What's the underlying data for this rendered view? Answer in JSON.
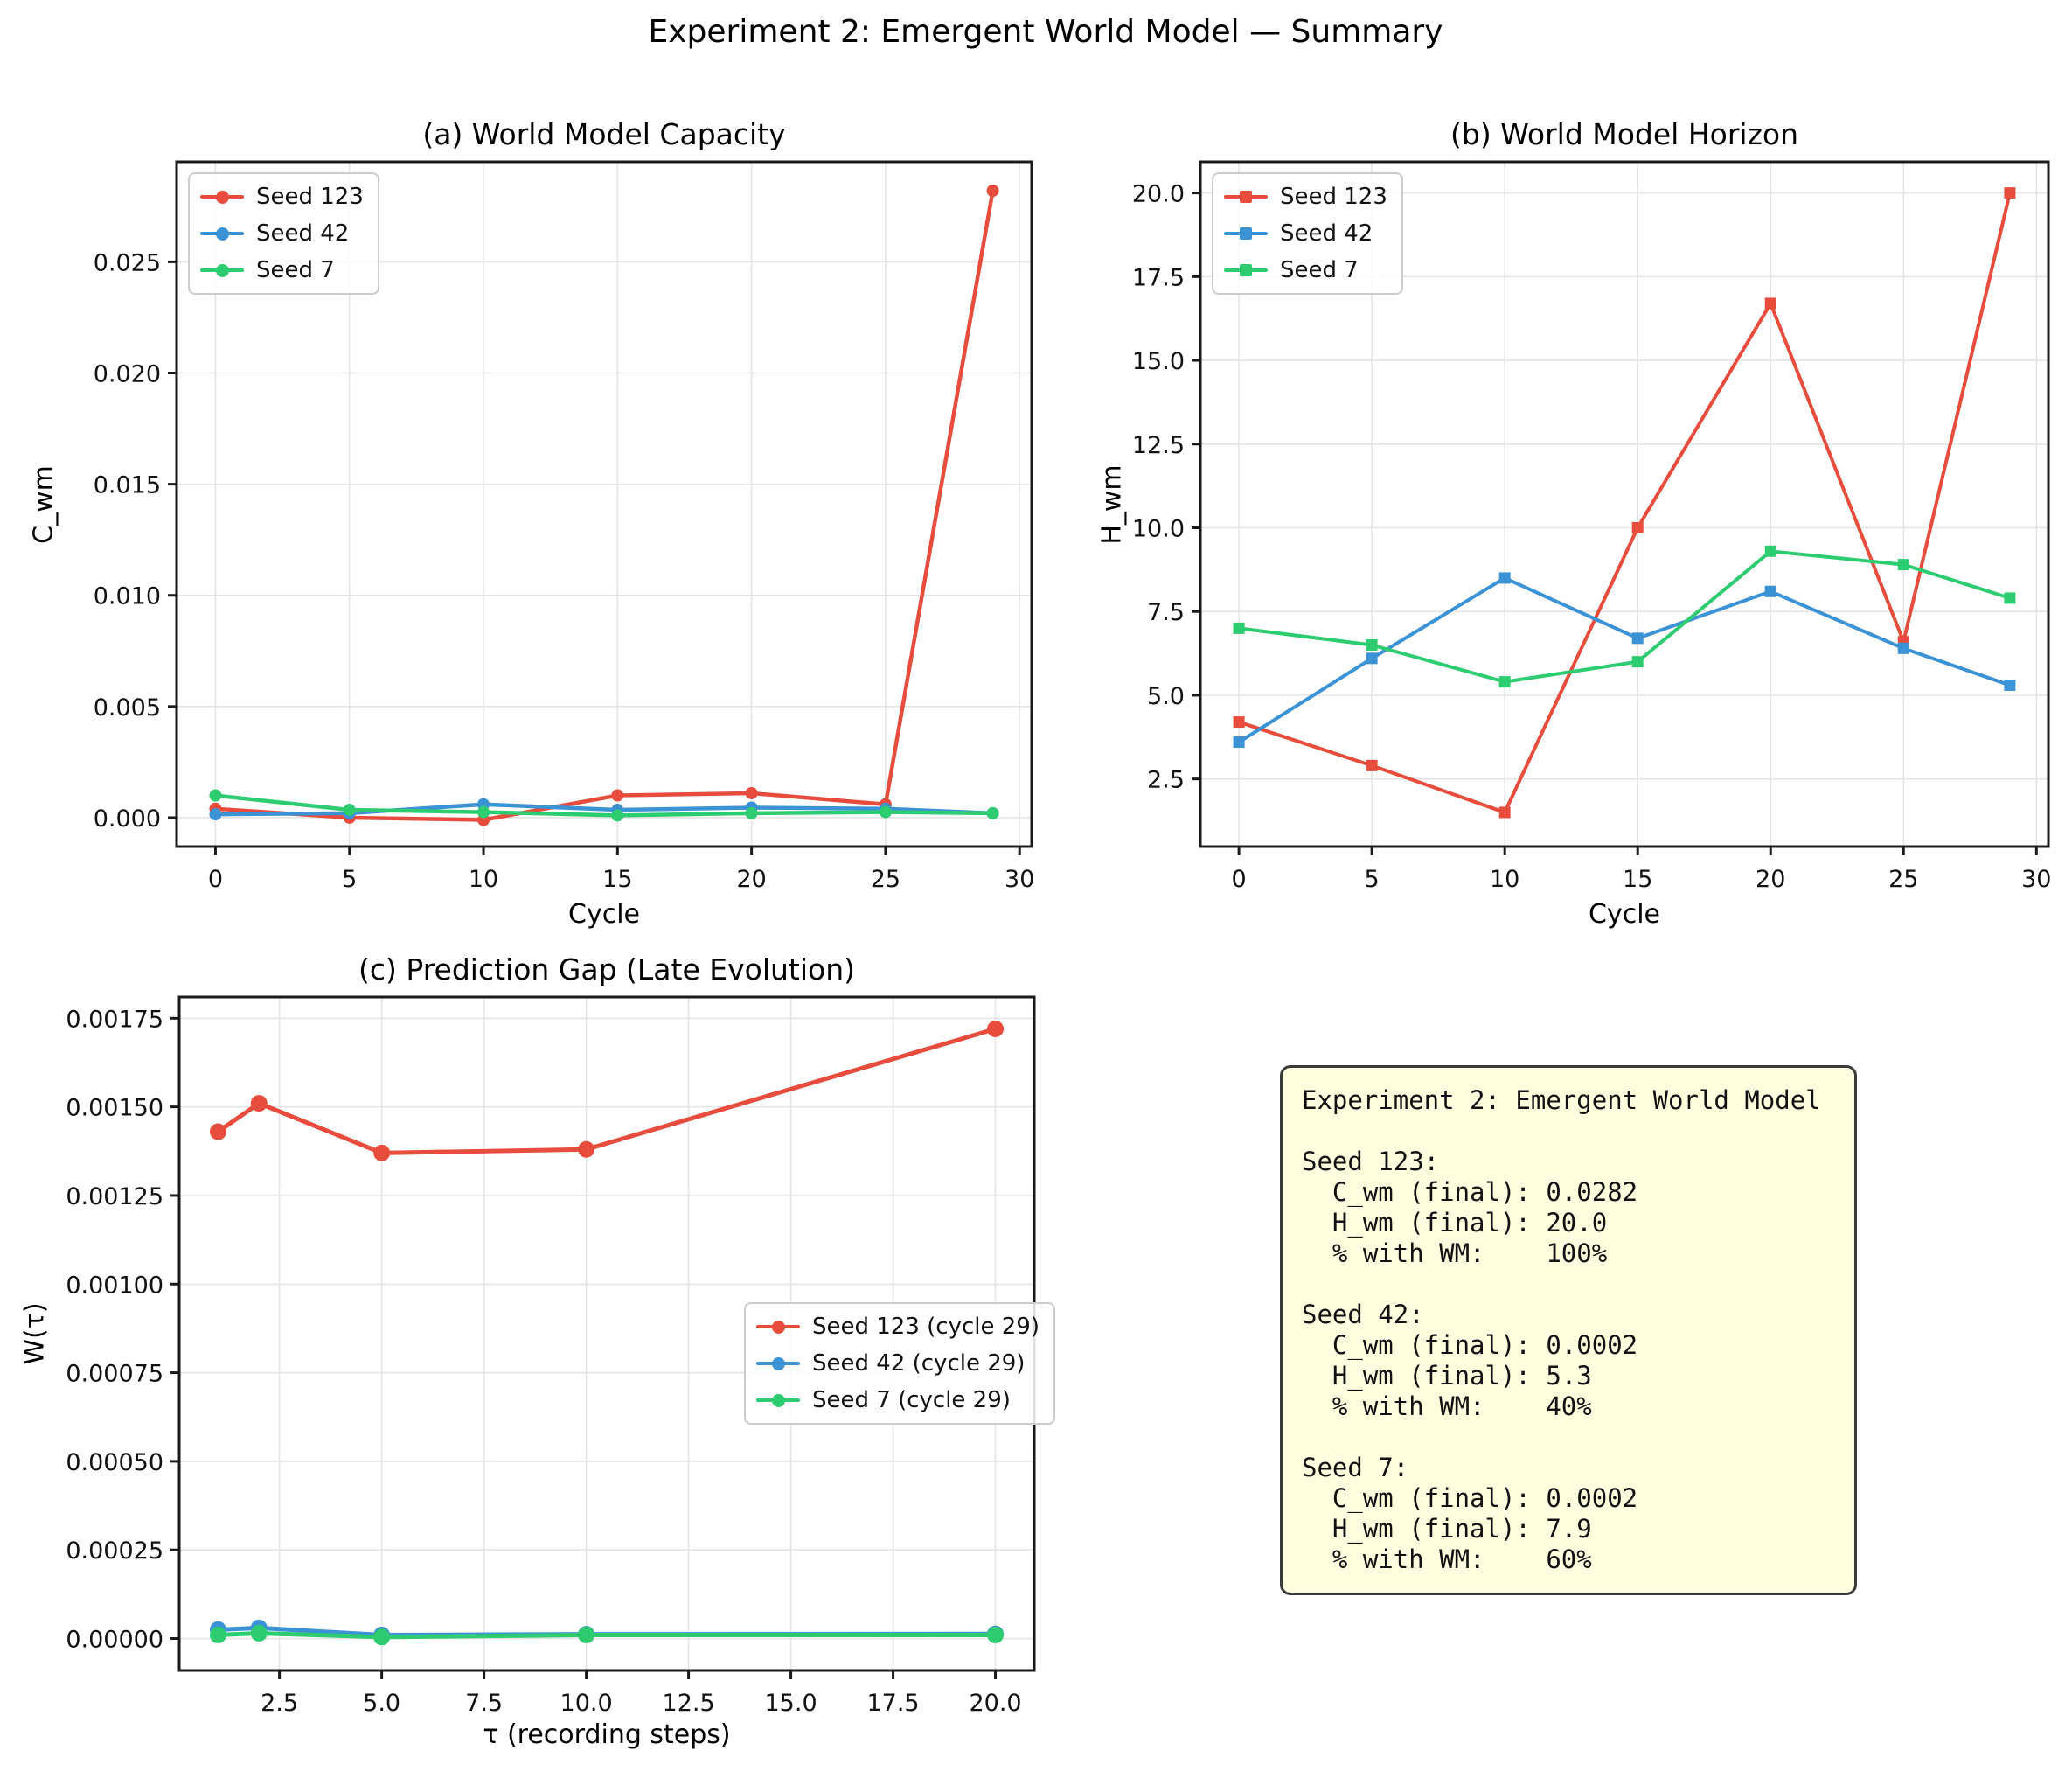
{
  "figure": {
    "title": "Experiment 2: Emergent World Model — Summary",
    "background": "#ffffff"
  },
  "chart_data": [
    {
      "type": "line",
      "title": "(a) World Model Capacity",
      "xlabel": "Cycle",
      "ylabel": "C_wm",
      "x": [
        0,
        5,
        10,
        15,
        20,
        25,
        29
      ],
      "series": [
        {
          "name": "Seed 123",
          "color": "#e74c3c",
          "marker": "circle",
          "values": [
            0.0004,
            0.0,
            -0.0001,
            0.001,
            0.0011,
            0.0006,
            0.0282
          ]
        },
        {
          "name": "Seed 42",
          "color": "#3b92d4",
          "marker": "circle",
          "values": [
            0.00015,
            0.0002,
            0.0006,
            0.00035,
            0.00045,
            0.0004,
            0.0002
          ]
        },
        {
          "name": "Seed 7",
          "color": "#2ecc71",
          "marker": "circle",
          "values": [
            0.001,
            0.00035,
            0.00025,
            0.0001,
            0.0002,
            0.00025,
            0.0002
          ]
        }
      ],
      "xlim": [
        -1.45,
        30.45
      ],
      "ylim": [
        -0.0013,
        0.0295
      ],
      "xticks": [
        0,
        5,
        10,
        15,
        20,
        25,
        30
      ],
      "xtick_labels": [
        "0",
        "5",
        "10",
        "15",
        "20",
        "25",
        "30"
      ],
      "yticks": [
        0,
        0.005,
        0.01,
        0.015,
        0.02,
        0.025
      ],
      "ytick_labels": [
        "0.000",
        "0.005",
        "0.010",
        "0.015",
        "0.020",
        "0.025"
      ],
      "grid": true,
      "legend_loc": "upper left",
      "line_width": 4.5,
      "marker_size": 7
    },
    {
      "type": "line",
      "title": "(b) World Model Horizon",
      "xlabel": "Cycle",
      "ylabel": "H_wm",
      "x": [
        0,
        5,
        10,
        15,
        20,
        25,
        29
      ],
      "series": [
        {
          "name": "Seed 123",
          "color": "#e74c3c",
          "marker": "square",
          "values": [
            4.2,
            2.9,
            1.5,
            10.0,
            16.7,
            6.6,
            20.0
          ]
        },
        {
          "name": "Seed 42",
          "color": "#3b92d4",
          "marker": "square",
          "values": [
            3.6,
            6.1,
            8.5,
            6.7,
            8.1,
            6.4,
            5.3
          ]
        },
        {
          "name": "Seed 7",
          "color": "#2ecc71",
          "marker": "square",
          "values": [
            7.0,
            6.5,
            5.4,
            6.0,
            9.3,
            8.9,
            7.9
          ]
        }
      ],
      "xlim": [
        -1.45,
        30.45
      ],
      "ylim": [
        0.48,
        20.93
      ],
      "xticks": [
        0,
        5,
        10,
        15,
        20,
        25,
        30
      ],
      "xtick_labels": [
        "0",
        "5",
        "10",
        "15",
        "20",
        "25",
        "30"
      ],
      "yticks": [
        2.5,
        5,
        7.5,
        10,
        12.5,
        15,
        17.5,
        20
      ],
      "ytick_labels": [
        "2.5",
        "5.0",
        "7.5",
        "10.0",
        "12.5",
        "15.0",
        "17.5",
        "20.0"
      ],
      "grid": true,
      "legend_loc": "upper left",
      "line_width": 4,
      "marker_size": 6.5
    },
    {
      "type": "line",
      "title": "(c) Prediction Gap (Late Evolution)",
      "xlabel": "τ (recording steps)",
      "ylabel": "W(τ)",
      "x": [
        1,
        2,
        5,
        10,
        20
      ],
      "series": [
        {
          "name": "Seed 123 (cycle 29)",
          "color": "#e74c3c",
          "marker": "circle",
          "values": [
            0.00143,
            0.00151,
            0.00137,
            0.00138,
            0.00172
          ]
        },
        {
          "name": "Seed 42 (cycle 29)",
          "color": "#3b92d4",
          "marker": "circle",
          "values": [
            2.5e-05,
            3e-05,
            1e-05,
            1.2e-05,
            1.3e-05
          ]
        },
        {
          "name": "Seed 7 (cycle 29)",
          "color": "#2ecc71",
          "marker": "circle",
          "values": [
            1e-05,
            1.5e-05,
            4e-06,
            1e-05,
            1e-05
          ]
        }
      ],
      "xlim": [
        0.05,
        20.95
      ],
      "ylim": [
        -9e-05,
        0.00181
      ],
      "xticks": [
        2.5,
        5,
        7.5,
        10,
        12.5,
        15,
        17.5,
        20
      ],
      "xtick_labels": [
        "2.5",
        "5.0",
        "7.5",
        "10.0",
        "12.5",
        "15.0",
        "17.5",
        "20.0"
      ],
      "yticks": [
        0,
        0.00025,
        0.0005,
        0.00075,
        0.001,
        0.00125,
        0.0015,
        0.00175
      ],
      "ytick_labels": [
        "0.00000",
        "0.00025",
        "0.00050",
        "0.00075",
        "0.00100",
        "0.00125",
        "0.00150",
        "0.00175"
      ],
      "grid": true,
      "legend_loc": "center right",
      "line_width": 5,
      "marker_size": 9.5
    }
  ],
  "summary_box": {
    "background": "#ffffe0",
    "border_color": "#3a3a3a",
    "lines": [
      "Experiment 2: Emergent World Model",
      "",
      "Seed 123:",
      "  C_wm (final): 0.0282",
      "  H_wm (final): 20.0",
      "  % with WM:    100%",
      "",
      "Seed 42:",
      "  C_wm (final): 0.0002",
      "  H_wm (final): 5.3",
      "  % with WM:    40%",
      "",
      "Seed 7:",
      "  C_wm (final): 0.0002",
      "  H_wm (final): 7.9",
      "  % with WM:    60%"
    ]
  }
}
